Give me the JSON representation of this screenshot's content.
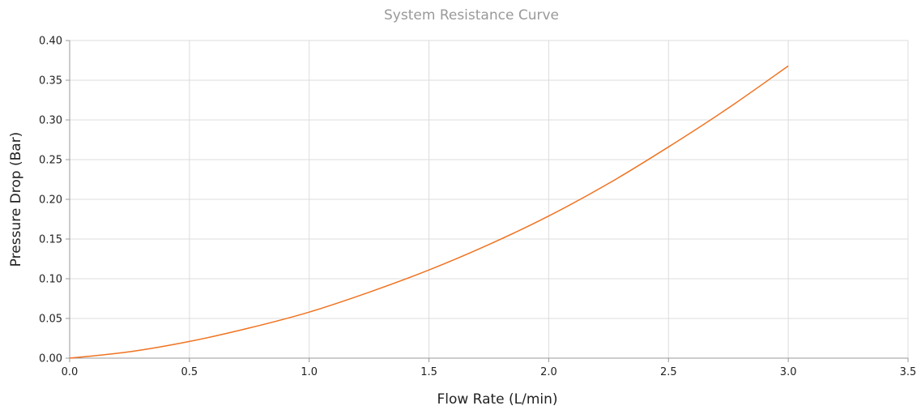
{
  "chart_data": {
    "type": "line",
    "title": "System Resistance Curve",
    "xlabel": "Flow Rate (L/min)",
    "ylabel": "Pressure Drop (Bar)",
    "xlim": [
      0,
      3.5
    ],
    "ylim": [
      0,
      0.4
    ],
    "x_ticks": [
      "0.0",
      "0.5",
      "1.0",
      "1.5",
      "2.0",
      "2.5",
      "3.0",
      "3.5"
    ],
    "y_ticks": [
      "0.00",
      "0.05",
      "0.10",
      "0.15",
      "0.20",
      "0.25",
      "0.30",
      "0.35",
      "0.40"
    ],
    "grid": true,
    "series": [
      {
        "color": "#f07320",
        "x": [
          0.0,
          0.25,
          0.5,
          0.75,
          1.0,
          1.25,
          1.5,
          1.75,
          2.0,
          2.25,
          2.5,
          2.75,
          3.0
        ],
        "y": [
          0.0,
          0.008,
          0.021,
          0.038,
          0.058,
          0.083,
          0.111,
          0.143,
          0.179,
          0.22,
          0.266,
          0.315,
          0.368
        ]
      }
    ]
  }
}
